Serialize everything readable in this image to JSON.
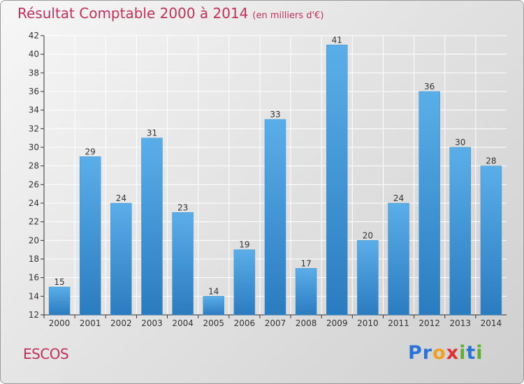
{
  "title": "Résultat Comptable 2000 à 2014",
  "subtitle": "(en milliers d'€)",
  "commune": "ESCOS",
  "brand": {
    "letters": [
      "P",
      "r",
      "o",
      "x",
      "i",
      "t",
      "i"
    ],
    "colors": [
      "#2a74d8",
      "#2a74d8",
      "#f0a020",
      "#e03030",
      "#60b030",
      "#2a74d8",
      "#60b030"
    ]
  },
  "colors": {
    "title": "#c0305a",
    "bar_top": "#5aaee8",
    "bar_bottom": "#2a7cc0",
    "grid": "#ffffff",
    "axis": "#333333"
  },
  "chart_data": {
    "type": "bar",
    "categories": [
      "2000",
      "2001",
      "2002",
      "2003",
      "2004",
      "2005",
      "2006",
      "2007",
      "2008",
      "2009",
      "2010",
      "2011",
      "2012",
      "2013",
      "2014"
    ],
    "values": [
      15,
      29,
      24,
      31,
      23,
      14,
      19,
      33,
      17,
      41,
      20,
      24,
      36,
      30,
      28
    ],
    "value_labels": [
      "15",
      "29",
      "24",
      "31",
      "23",
      "14",
      "19",
      "33",
      "17",
      "41",
      "20",
      "24",
      "36",
      "30",
      "28"
    ],
    "yticks": [
      "12",
      "14",
      "16",
      "18",
      "20",
      "22",
      "24",
      "26",
      "28",
      "30",
      "32",
      "34",
      "36",
      "38",
      "40",
      "42"
    ],
    "ylim": [
      12,
      42
    ],
    "grid": true,
    "xlabel": "",
    "ylabel": ""
  }
}
